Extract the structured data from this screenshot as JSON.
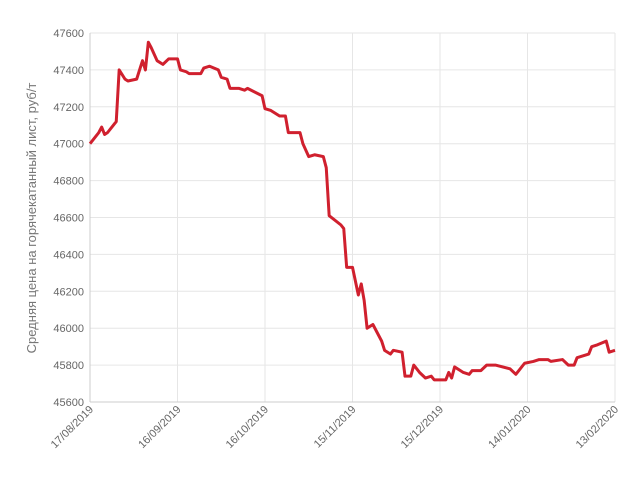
{
  "chart_data": {
    "type": "line",
    "y_label": "Средняя цена на горячекатанный лист, руб/т",
    "x": [
      "17/08/2019",
      "19/08/2019",
      "20/08/2019",
      "21/08/2019",
      "22/08/2019",
      "23/08/2019",
      "26/08/2019",
      "27/08/2019",
      "29/08/2019",
      "30/08/2019",
      "02/09/2019",
      "04/09/2019",
      "05/09/2019",
      "06/09/2019",
      "07/09/2019",
      "09/09/2019",
      "11/09/2019",
      "13/09/2019",
      "16/09/2019",
      "17/09/2019",
      "19/09/2019",
      "20/09/2019",
      "24/09/2019",
      "25/09/2019",
      "27/09/2019",
      "30/09/2019",
      "01/10/2019",
      "03/10/2019",
      "04/10/2019",
      "07/10/2019",
      "09/10/2019",
      "10/10/2019",
      "15/10/2019",
      "16/10/2019",
      "18/10/2019",
      "21/10/2019",
      "23/10/2019",
      "24/10/2019",
      "25/10/2019",
      "28/10/2019",
      "29/10/2019",
      "31/10/2019",
      "02/11/2019",
      "05/11/2019",
      "06/11/2019",
      "07/11/2019",
      "11/11/2019",
      "12/11/2019",
      "13/11/2019",
      "15/11/2019",
      "17/11/2019",
      "18/11/2019",
      "19/11/2019",
      "20/11/2019",
      "22/11/2019",
      "25/11/2019",
      "26/11/2019",
      "28/11/2019",
      "29/11/2019",
      "02/12/2019",
      "03/12/2019",
      "05/12/2019",
      "06/12/2019",
      "08/12/2019",
      "10/12/2019",
      "12/12/2019",
      "13/12/2019",
      "17/12/2019",
      "18/12/2019",
      "19/12/2019",
      "20/12/2019",
      "22/12/2019",
      "23/12/2019",
      "25/12/2019",
      "26/12/2019",
      "29/12/2019",
      "31/12/2019",
      "03/01/2020",
      "08/01/2020",
      "10/01/2020",
      "11/01/2020",
      "13/01/2020",
      "16/01/2020",
      "18/01/2020",
      "21/01/2020",
      "22/01/2020",
      "26/01/2020",
      "28/01/2020",
      "30/01/2020",
      "31/01/2020",
      "04/02/2020",
      "05/02/2020",
      "07/02/2020",
      "10/02/2020",
      "11/02/2020",
      "13/02/2020"
    ],
    "series": [
      {
        "color": "#d0202e",
        "values": [
          47000,
          47040,
          47060,
          47090,
          47050,
          47060,
          47120,
          47400,
          47350,
          47340,
          47350,
          47450,
          47400,
          47550,
          47520,
          47450,
          47430,
          47460,
          47460,
          47400,
          47390,
          47380,
          47380,
          47410,
          47420,
          47400,
          47360,
          47350,
          47300,
          47300,
          47290,
          47300,
          47260,
          47190,
          47180,
          47150,
          47150,
          47060,
          47060,
          47060,
          47000,
          46930,
          46940,
          46930,
          46870,
          46610,
          46560,
          46540,
          46330,
          46330,
          46180,
          46240,
          46150,
          46000,
          46020,
          45930,
          45880,
          45860,
          45880,
          45870,
          45740,
          45740,
          45800,
          45760,
          45730,
          45740,
          45720,
          45720,
          45760,
          45730,
          45790,
          45770,
          45760,
          45750,
          45770,
          45770,
          45800,
          45800,
          45780,
          45750,
          45770,
          45810,
          45820,
          45830,
          45830,
          45820,
          45830,
          45800,
          45800,
          45840,
          45860,
          45900,
          45910,
          45930,
          45870,
          45880
        ]
      }
    ],
    "xlim": [
      "17/08/2019",
      "13/02/2020"
    ],
    "xticks": [
      "17/08/2019",
      "16/09/2019",
      "16/10/2019",
      "15/11/2019",
      "15/12/2019",
      "14/01/2020",
      "13/02/2020"
    ],
    "ylim": [
      45600,
      47600
    ],
    "yticks": [
      45600,
      45800,
      46000,
      46200,
      46400,
      46600,
      46800,
      47000,
      47200,
      47400,
      47600
    ],
    "grid": true
  }
}
